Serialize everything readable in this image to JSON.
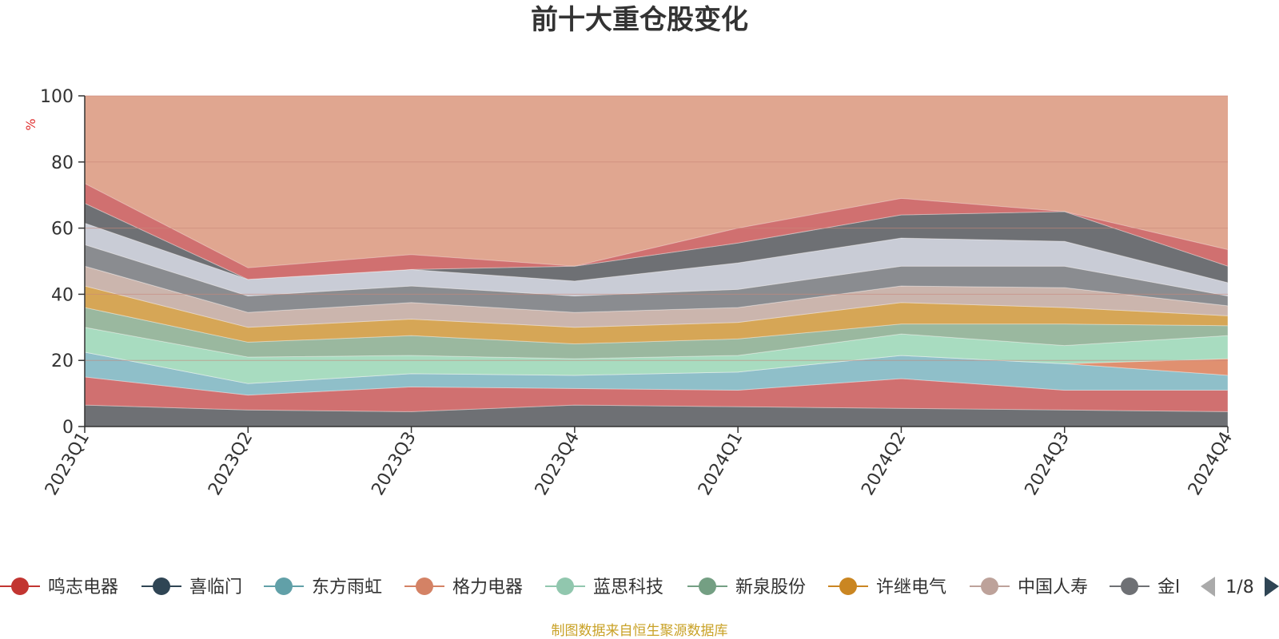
{
  "chart_data": {
    "type": "area",
    "stacked": true,
    "title": "前十大重仓股变化",
    "ylabel": "%",
    "ylim": [
      0,
      100
    ],
    "yticks": [
      0,
      20,
      40,
      60,
      80,
      100
    ],
    "categories": [
      "2023Q1",
      "2023Q2",
      "2023Q3",
      "2023Q4",
      "2024Q1",
      "2024Q2",
      "2024Q3",
      "2024Q4"
    ],
    "series": [
      {
        "name": "鸣志电器",
        "color": "#c23531",
        "values": [
          0,
          0,
          4.5,
          0,
          0,
          0,
          0,
          0
        ]
      },
      {
        "name": "喜临门",
        "color": "#2f4554",
        "values": [
          6.5,
          5.0,
          0,
          6.5,
          6.0,
          5.5,
          0,
          0
        ]
      },
      {
        "name": "东方雨虹",
        "color": "#61a0a8",
        "values": [
          8.5,
          0,
          0,
          5.0,
          5.0,
          0,
          0,
          0
        ]
      },
      {
        "name": "格力电器",
        "color": "#d48265",
        "values": [
          0,
          4.5,
          0,
          0,
          0,
          0,
          0,
          4.5
        ]
      },
      {
        "name": "蓝思科技",
        "color": "#91c7ae",
        "values": [
          0,
          0,
          7.5,
          0,
          0,
          0,
          5.0,
          0
        ]
      },
      {
        "name": "新泉股份",
        "color": "#749f83",
        "values": [
          0,
          0,
          0,
          0,
          0,
          0,
          0,
          0
        ]
      },
      {
        "name": "许继电气",
        "color": "#ca8622",
        "values": [
          0,
          0,
          0,
          0,
          0,
          5.5,
          0,
          0
        ]
      },
      {
        "name": "中国人寿",
        "color": "#bda29a",
        "values": [
          0,
          0,
          0,
          0,
          0,
          0,
          5.5,
          0
        ]
      },
      {
        "name": "金l",
        "color": "#6e7074",
        "values": [
          0,
          3.5,
          4.5,
          4.0,
          0,
          0,
          0,
          0
        ]
      }
    ],
    "fill_series_colors": [
      "#6e7074",
      "#d07070",
      "#8fbfc9",
      "#e09070",
      "#a8dcc0",
      "#9ab89f",
      "#d6a656",
      "#cbb5ad",
      "#8a8c90",
      "#c9ccd6"
    ],
    "fill_layers": [
      [
        6.5,
        5.0,
        4.5,
        6.5,
        6.0,
        5.5,
        5.0,
        4.5
      ],
      [
        8.5,
        4.5,
        7.5,
        5.0,
        5.0,
        9.0,
        6.0,
        6.5
      ],
      [
        7.5,
        3.5,
        4.0,
        4.0,
        5.5,
        7.0,
        8.0,
        4.5
      ],
      [
        0,
        0,
        0,
        0,
        0,
        0,
        0,
        5.0
      ],
      [
        7.5,
        8.0,
        5.5,
        5.0,
        5.0,
        6.5,
        5.5,
        7.0
      ],
      [
        6.0,
        4.5,
        6.0,
        4.5,
        5.0,
        3.0,
        6.5,
        3.0
      ],
      [
        6.5,
        4.5,
        5.0,
        5.0,
        5.0,
        6.5,
        5.0,
        3.0
      ],
      [
        6.0,
        4.5,
        5.0,
        4.5,
        4.5,
        5.0,
        6.0,
        3.0
      ],
      [
        6.5,
        5.0,
        5.0,
        5.0,
        5.5,
        6.0,
        6.5,
        3.0
      ],
      [
        6.5,
        5.0,
        5.0,
        4.5,
        8.0,
        8.5,
        7.5,
        4.0
      ],
      [
        6.0,
        0,
        0,
        4.5,
        6.0,
        7.0,
        9.0,
        5.0
      ],
      [
        6.0,
        3.5,
        4.5,
        0,
        4.5,
        5.0,
        0,
        5.0
      ]
    ]
  },
  "legend": {
    "page": "1/8",
    "items": [
      "鸣志电器",
      "喜临门",
      "东方雨虹",
      "格力电器",
      "蓝思科技",
      "新泉股份",
      "许继电气",
      "中国人寿",
      "金l"
    ]
  },
  "footer": "制图数据来自恒生聚源数据库",
  "colors": {
    "remainder": "#e0a690",
    "axis": "#333333",
    "grid": "#c9877a"
  }
}
